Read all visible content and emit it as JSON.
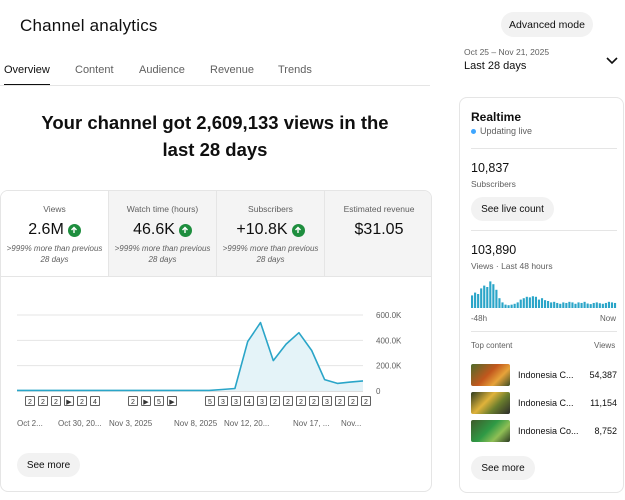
{
  "header": {
    "title": "Channel analytics",
    "advanced_mode_label": "Advanced mode",
    "date_range": "Oct 25 – Nov 21, 2025",
    "date_label": "Last 28 days"
  },
  "tabs": [
    {
      "label": "Overview",
      "active": true
    },
    {
      "label": "Content",
      "active": false
    },
    {
      "label": "Audience",
      "active": false
    },
    {
      "label": "Revenue",
      "active": false
    },
    {
      "label": "Trends",
      "active": false
    }
  ],
  "headline": {
    "line1": "Your channel got 2,609,133 views in the",
    "line2": "last 28 days"
  },
  "metrics": [
    {
      "label": "Views",
      "value": "2.6M",
      "trend": "up",
      "note": ">999% more than previous 28 days"
    },
    {
      "label": "Watch time (hours)",
      "value": "46.6K",
      "trend": "up",
      "note": ">999% more than previous 28 days"
    },
    {
      "label": "Subscribers",
      "value": "+10.8K",
      "trend": "up",
      "note": ">999% more than previous 28 days"
    },
    {
      "label": "Estimated revenue",
      "value": "$31.05",
      "trend": "",
      "note": ""
    }
  ],
  "chart_data": {
    "type": "area",
    "title": "",
    "xlabel": "",
    "ylabel": "",
    "ylim": [
      0,
      600000
    ],
    "y_ticks": [
      {
        "value": 0,
        "label": "0"
      },
      {
        "value": 200000,
        "label": "200.0K"
      },
      {
        "value": 400000,
        "label": "400.0K"
      },
      {
        "value": 600000,
        "label": "600.0K"
      }
    ],
    "x_tick_labels": [
      "Oct 2...",
      "Oct 30, 20...",
      "Nov 3, 2025",
      "Nov 8, 2025",
      "Nov 12, 20...",
      "Nov 17, ...",
      "Nov..."
    ],
    "series": [
      {
        "values": [
          5000,
          5000,
          5000,
          5000,
          5000,
          5000,
          5000,
          5000,
          5000,
          5000,
          5000,
          5000,
          5000,
          5000,
          5000,
          5000,
          12000,
          20000,
          390000,
          540000,
          240000,
          370000,
          460000,
          320000,
          90000,
          60000,
          70000,
          80000
        ]
      }
    ],
    "markers": [
      {
        "labels": [
          "2",
          "2",
          "2",
          "▶",
          "2",
          "4"
        ]
      },
      {
        "labels": [
          "2",
          "▶",
          "5",
          "▶"
        ]
      },
      {
        "labels": [
          "5",
          "3",
          "3",
          "4",
          "3",
          "2",
          "2",
          "2",
          "2",
          "3",
          "2",
          "2",
          "2"
        ]
      }
    ],
    "colors": {
      "line": "#2aa5c8",
      "fill": "#e4f3f8",
      "marker_bg": "#606060"
    }
  },
  "see_more_label": "See more",
  "realtime": {
    "title": "Realtime",
    "status": "Updating live",
    "subscribers_value": "10,837",
    "subscribers_label": "Subscribers",
    "live_count_label": "See live count",
    "views_value": "103,890",
    "views_label": "Views · Last 48 hours",
    "axis_start": "-48h",
    "axis_end": "Now",
    "top_content_label": "Top content",
    "views_col_label": "Views",
    "top_content": [
      {
        "title": "Indonesia C...",
        "views": "54,387"
      },
      {
        "title": "Indonesia C...",
        "views": "11,154"
      },
      {
        "title": "Indonesia Co...",
        "views": "8,752"
      }
    ],
    "bars": [
      0.45,
      0.55,
      0.5,
      0.7,
      0.8,
      0.75,
      0.95,
      0.85,
      0.65,
      0.35,
      0.2,
      0.12,
      0.1,
      0.12,
      0.15,
      0.2,
      0.3,
      0.35,
      0.4,
      0.38,
      0.42,
      0.4,
      0.3,
      0.35,
      0.28,
      0.25,
      0.2,
      0.22,
      0.18,
      0.15,
      0.2,
      0.18,
      0.22,
      0.2,
      0.15,
      0.2,
      0.18,
      0.22,
      0.16,
      0.14,
      0.18,
      0.2,
      0.17,
      0.15,
      0.18,
      0.22,
      0.2,
      0.18
    ],
    "see_more_label": "See more"
  }
}
